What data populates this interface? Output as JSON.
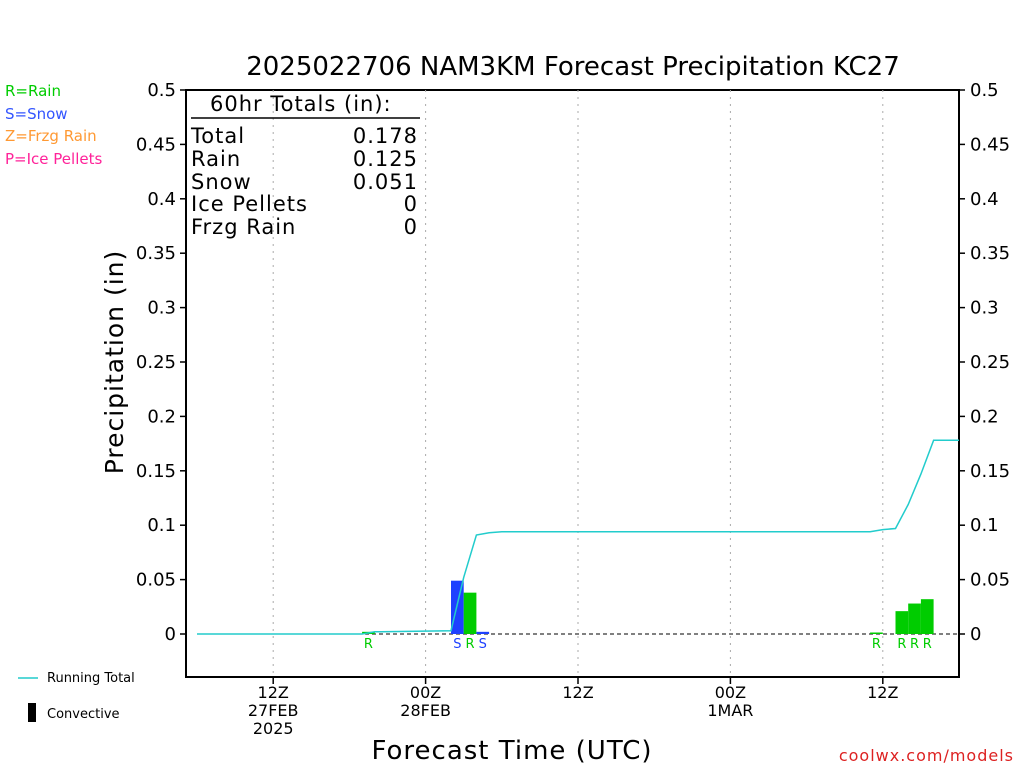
{
  "colors": {
    "rain": "#00cc00",
    "snow": "#1e40ff",
    "frzg_rain": "#ff9933",
    "ice_pellets": "#ff2299",
    "running_total": "#22cccc",
    "credit": "#dd2222"
  },
  "ptype_legend": [
    {
      "label": "R=Rain",
      "color": "#00cc00"
    },
    {
      "label": "S=Snow",
      "color": "#3355ff"
    },
    {
      "label": "Z=Frzg Rain",
      "color": "#ff9933"
    },
    {
      "label": "P=Ice Pellets",
      "color": "#ff2299"
    }
  ],
  "totals_box": {
    "header": "60hr Totals (in):",
    "rows": [
      {
        "label": "Total",
        "value": "0.178"
      },
      {
        "label": "Rain",
        "value": "0.125"
      },
      {
        "label": "Snow",
        "value": "0.051"
      },
      {
        "label": "Ice Pellets",
        "value": "0"
      },
      {
        "label": "Frzg Rain",
        "value": "0"
      }
    ]
  },
  "bottom_legend": {
    "running_total": "Running Total",
    "convective": "Convective"
  },
  "credit": "coolwx.com/models",
  "chart_data": {
    "type": "bar",
    "title": "2025022706 NAM3KM Forecast Precipitation KC27",
    "xlabel": "Forecast Time (UTC)",
    "ylabel": "Precipitation (in)",
    "ylim": [
      -0.04,
      0.5
    ],
    "y_ticks": [
      0,
      0.05,
      0.1,
      0.15,
      0.2,
      0.25,
      0.3,
      0.35,
      0.4,
      0.45,
      0.5
    ],
    "y_tick_labels": [
      "0",
      "0.05",
      "0.1",
      "0.15",
      "0.2",
      "0.25",
      "0.3",
      "0.35",
      "0.4",
      "0.45",
      "0.5"
    ],
    "x_range_hours": [
      0,
      60
    ],
    "x_gridlines_hours": [
      6,
      18,
      30,
      42,
      54
    ],
    "x_ticks": [
      {
        "hour": 6,
        "lines": [
          "12Z",
          "27FEB",
          "2025"
        ]
      },
      {
        "hour": 18,
        "lines": [
          "00Z",
          "28FEB"
        ]
      },
      {
        "hour": 30,
        "lines": [
          "12Z"
        ]
      },
      {
        "hour": 42,
        "lines": [
          "00Z",
          "1MAR"
        ]
      },
      {
        "hour": 54,
        "lines": [
          "12Z"
        ]
      }
    ],
    "grid": "vertical dotted",
    "bars": [
      {
        "hour": 14,
        "value": 0.002,
        "ptype": "R"
      },
      {
        "hour": 21,
        "value": 0.049,
        "ptype": "S"
      },
      {
        "hour": 22,
        "value": 0.038,
        "ptype": "R"
      },
      {
        "hour": 23,
        "value": 0.002,
        "ptype": "S"
      },
      {
        "hour": 54,
        "value": 0.001,
        "ptype": "R"
      },
      {
        "hour": 56,
        "value": 0.021,
        "ptype": "R"
      },
      {
        "hour": 57,
        "value": 0.028,
        "ptype": "R"
      },
      {
        "hour": 58,
        "value": 0.032,
        "ptype": "R"
      }
    ],
    "series": [
      {
        "name": "Running Total",
        "x": [
          0,
          13,
          14,
          20,
          21,
          22,
          23,
          24,
          53,
          54,
          55,
          56,
          57,
          58,
          59,
          60
        ],
        "values": [
          0,
          0,
          0.002,
          0.003,
          0.052,
          0.091,
          0.093,
          0.094,
          0.094,
          0.096,
          0.097,
          0.119,
          0.147,
          0.178,
          0.178,
          0.178
        ]
      }
    ],
    "zero_line": "dashed"
  }
}
